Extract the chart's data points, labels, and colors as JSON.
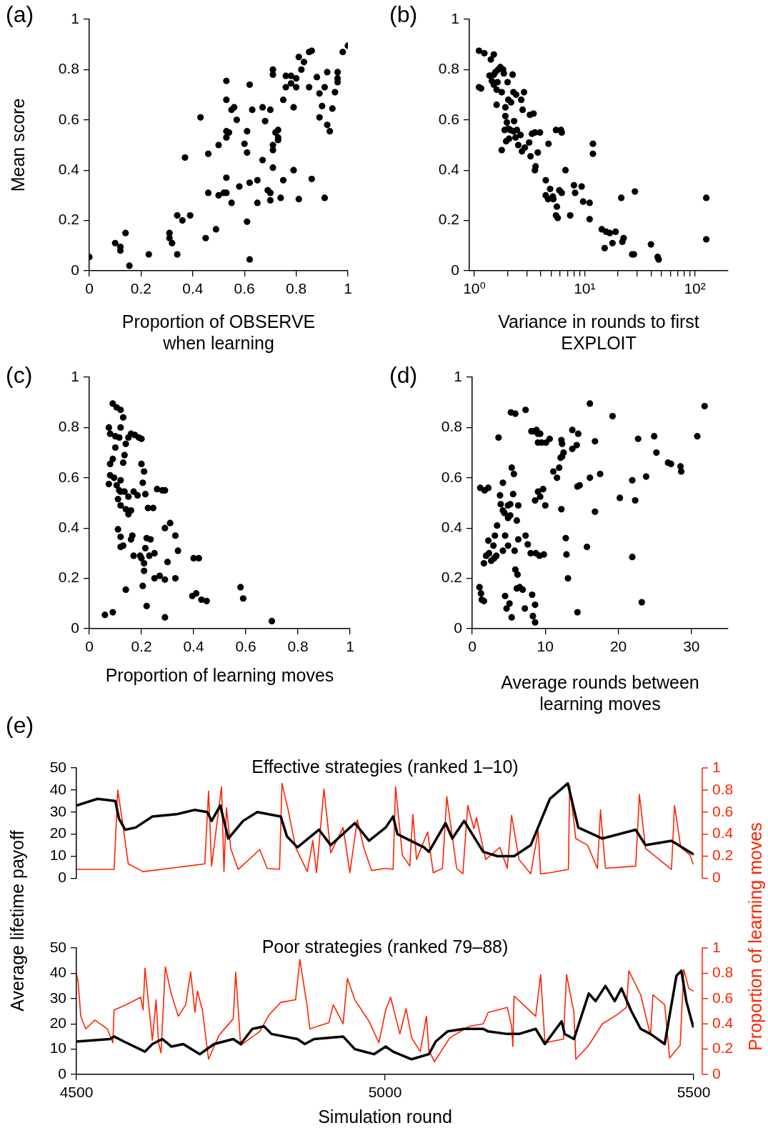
{
  "chart_data": [
    {
      "type": "scatter",
      "annotations": [
        "(a)"
      ],
      "xlabel": "Proportion of OBSERVE when learning",
      "ylabel": "Mean score",
      "color": "#000000",
      "marker": "circle",
      "xlim": [
        0,
        1
      ],
      "xticks": [
        0,
        0.2,
        0.4,
        0.6,
        0.8,
        1
      ],
      "ylim": [
        0,
        1
      ],
      "yticks": [
        0,
        0.2,
        0.4,
        0.6,
        0.8,
        1
      ],
      "x": [
        0,
        0.1,
        0.12,
        0.12,
        0.14,
        0.155,
        0.23,
        0.31,
        0.31,
        0.32,
        0.34,
        0.34,
        0.36,
        0.39,
        0.37,
        0.43,
        0.45,
        0.46,
        0.46,
        0.49,
        0.5,
        0.52,
        0.53,
        0.5,
        0.53,
        0.53,
        0.53,
        0.53,
        0.53,
        0.54,
        0.55,
        0.55,
        0.56,
        0.57,
        0.58,
        0.6,
        0.61,
        0.61,
        0.61,
        0.62,
        0.62,
        0.62,
        0.63,
        0.65,
        0.65,
        0.67,
        0.68,
        0.67,
        0.69,
        0.7,
        0.7,
        0.7,
        0.71,
        0.71,
        0.71,
        0.71,
        0.71,
        0.72,
        0.73,
        0.73,
        0.73,
        0.74,
        0.75,
        0.75,
        0.76,
        0.76,
        0.78,
        0.78,
        0.79,
        0.79,
        0.8,
        0.8,
        0.81,
        0.81,
        0.82,
        0.83,
        0.85,
        0.85,
        0.86,
        0.86,
        0.88,
        0.89,
        0.89,
        0.9,
        0.91,
        0.92,
        0.91,
        0.92,
        0.93,
        0.94,
        0.95,
        0.96,
        0.96,
        0.96,
        0.98,
        1
      ],
      "values": [
        0.055,
        0.11,
        0.095,
        0.08,
        0.15,
        0.02,
        0.065,
        0.15,
        0.13,
        0.11,
        0.065,
        0.22,
        0.2,
        0.22,
        0.45,
        0.61,
        0.13,
        0.31,
        0.465,
        0.165,
        0.3,
        0.31,
        0.31,
        0.5,
        0.37,
        0.755,
        0.68,
        0.555,
        0.53,
        0.55,
        0.27,
        0.64,
        0.65,
        0.6,
        0.335,
        0.505,
        0.555,
        0.47,
        0.195,
        0.74,
        0.045,
        0.35,
        0.64,
        0.27,
        0.36,
        0.65,
        0.595,
        0.44,
        0.32,
        0.64,
        0.31,
        0.28,
        0.8,
        0.78,
        0.48,
        0.41,
        0.5,
        0.55,
        0.53,
        0.52,
        0.56,
        0.29,
        0.68,
        0.36,
        0.73,
        0.775,
        0.745,
        0.775,
        0.65,
        0.4,
        0.765,
        0.73,
        0.285,
        0.85,
        0.8,
        0.83,
        0.73,
        0.87,
        0.875,
        0.365,
        0.77,
        0.705,
        0.61,
        0.655,
        0.73,
        0.79,
        0.29,
        0.58,
        0.555,
        0.645,
        0.71,
        0.75,
        0.79,
        0.765,
        0.87,
        0.895
      ]
    },
    {
      "type": "scatter",
      "annotations": [
        "(b)"
      ],
      "xlabel": "Variance in rounds to first EXPLOIT",
      "color": "#000000",
      "marker": "circle",
      "log": "x",
      "xlim": [
        0.9,
        200
      ],
      "xticks": [
        {
          "value": 1,
          "label": "10⁰"
        },
        {
          "value": 2,
          "label": null
        },
        {
          "value": 3,
          "label": null
        },
        {
          "value": 4,
          "label": null
        },
        {
          "value": 5,
          "label": null
        },
        {
          "value": 6,
          "label": null
        },
        {
          "value": 7,
          "label": null
        },
        {
          "value": 8,
          "label": null
        },
        {
          "value": 9,
          "label": null
        },
        {
          "value": 10,
          "label": "10¹"
        },
        {
          "value": 20,
          "label": null
        },
        {
          "value": 30,
          "label": null
        },
        {
          "value": 40,
          "label": null
        },
        {
          "value": 50,
          "label": null
        },
        {
          "value": 60,
          "label": null
        },
        {
          "value": 70,
          "label": null
        },
        {
          "value": 80,
          "label": null
        },
        {
          "value": 90,
          "label": null
        },
        {
          "value": 100,
          "label": "10²"
        }
      ],
      "ylim": [
        0,
        1
      ],
      "yticks": [
        0,
        0.2,
        0.4,
        0.6,
        0.8,
        1
      ],
      "x": [
        1.1,
        1.1,
        1.15,
        1.23,
        1.41,
        1.5,
        1.37,
        1.44,
        1.5,
        1.55,
        1.62,
        1.64,
        1.72,
        1.82,
        1.85,
        1.5,
        1.59,
        1.59,
        1.77,
        2.0,
        2.22,
        2.26,
        1.91,
        2.03,
        2.15,
        2.39,
        1.91,
        1.97,
        2.12,
        2.29,
        1.88,
        2.03,
        2.26,
        2.43,
        2.66,
        2.74,
        2.82,
        3.19,
        3.44,
        1.77,
        1.94,
        2.06,
        2.36,
        2.62,
        2.5,
        2.7,
        2.87,
        3.14,
        3.33,
        3.23,
        3.59,
        3.54,
        3.54,
        3.93,
        3.76,
        4.7,
        5.5,
        6.1,
        6.2,
        4.44,
        4.86,
        5.15,
        5.9,
        6.2,
        4.44,
        4.66,
        5.2,
        5.6,
        5.5,
        5.7,
        7.4,
        9.4,
        9.7,
        6.7,
        8.0,
        8.2,
        11.1,
        11.9,
        11.9,
        11.1,
        14.3,
        15.7,
        16.9,
        19.1,
        15.2,
        17.9,
        22.6,
        22.0,
        21.5,
        28.6,
        27,
        28,
        40,
        46,
        47,
        127,
        127
      ],
      "values": [
        0.875,
        0.73,
        0.725,
        0.865,
        0.84,
        0.86,
        0.776,
        0.755,
        0.78,
        0.79,
        0.75,
        0.8,
        0.81,
        0.8,
        0.785,
        0.74,
        0.72,
        0.66,
        0.71,
        0.75,
        0.78,
        0.71,
        0.65,
        0.68,
        0.67,
        0.7,
        0.615,
        0.59,
        0.56,
        0.595,
        0.56,
        0.565,
        0.555,
        0.56,
        0.68,
        0.64,
        0.71,
        0.62,
        0.625,
        0.48,
        0.515,
        0.525,
        0.53,
        0.54,
        0.5,
        0.475,
        0.49,
        0.51,
        0.545,
        0.455,
        0.415,
        0.4,
        0.55,
        0.55,
        0.47,
        0.505,
        0.56,
        0.56,
        0.55,
        0.36,
        0.325,
        0.295,
        0.32,
        0.31,
        0.3,
        0.285,
        0.285,
        0.255,
        0.22,
        0.21,
        0.22,
        0.335,
        0.275,
        0.4,
        0.34,
        0.31,
        0.27,
        0.505,
        0.465,
        0.205,
        0.165,
        0.155,
        0.15,
        0.155,
        0.09,
        0.11,
        0.13,
        0.115,
        0.29,
        0.315,
        0.065,
        0.065,
        0.105,
        0.055,
        0.045,
        0.29,
        0.125
      ]
    },
    {
      "type": "scatter",
      "annotations": [
        "(c)"
      ],
      "xlabel": "Proportion of learning moves",
      "color": "#000000",
      "marker": "circle",
      "xlim": [
        0,
        1
      ],
      "xticks": [
        0,
        0.2,
        0.4,
        0.6,
        0.8,
        1
      ],
      "ylim": [
        0,
        1
      ],
      "yticks": [
        0,
        0.2,
        0.4,
        0.6,
        0.8,
        1
      ],
      "x": [
        0.06,
        0.09,
        0.075,
        0.08,
        0.09,
        0.105,
        0.12,
        0.13,
        0.08,
        0.09,
        0.1,
        0.1,
        0.115,
        0.12,
        0.075,
        0.08,
        0.095,
        0.105,
        0.115,
        0.12,
        0.13,
        0.135,
        0.14,
        0.15,
        0.16,
        0.175,
        0.19,
        0.2,
        0.11,
        0.12,
        0.135,
        0.15,
        0.17,
        0.185,
        0.12,
        0.14,
        0.15,
        0.16,
        0.11,
        0.12,
        0.12,
        0.13,
        0.16,
        0.165,
        0.14,
        0.205,
        0.21,
        0.21,
        0.17,
        0.195,
        0.2,
        0.215,
        0.23,
        0.2,
        0.205,
        0.21,
        0.215,
        0.225,
        0.245,
        0.26,
        0.22,
        0.235,
        0.25,
        0.25,
        0.27,
        0.29,
        0.3,
        0.28,
        0.29,
        0.29,
        0.31,
        0.33,
        0.34,
        0.33,
        0.22,
        0.29,
        0.4,
        0.42,
        0.395,
        0.41,
        0.43,
        0.45,
        0.58,
        0.59,
        0.7
      ],
      "values": [
        0.055,
        0.065,
        0.8,
        0.775,
        0.895,
        0.88,
        0.87,
        0.84,
        0.655,
        0.675,
        0.72,
        0.765,
        0.76,
        0.8,
        0.575,
        0.61,
        0.6,
        0.57,
        0.55,
        0.59,
        0.66,
        0.69,
        0.735,
        0.76,
        0.775,
        0.77,
        0.76,
        0.755,
        0.515,
        0.545,
        0.545,
        0.525,
        0.545,
        0.53,
        0.49,
        0.475,
        0.455,
        0.47,
        0.395,
        0.365,
        0.325,
        0.33,
        0.355,
        0.37,
        0.155,
        0.17,
        0.26,
        0.23,
        0.29,
        0.29,
        0.28,
        0.32,
        0.29,
        0.655,
        0.58,
        0.625,
        0.535,
        0.48,
        0.48,
        0.555,
        0.36,
        0.355,
        0.3,
        0.2,
        0.21,
        0.195,
        0.265,
        0.55,
        0.55,
        0.4,
        0.42,
        0.37,
        0.31,
        0.2,
        0.09,
        0.045,
        0.28,
        0.28,
        0.13,
        0.14,
        0.115,
        0.11,
        0.165,
        0.12,
        0.03
      ]
    },
    {
      "type": "scatter",
      "annotations": [
        "(d)"
      ],
      "xlabel": "Average rounds between learning moves",
      "color": "#000000",
      "marker": "circle",
      "xlim": [
        0,
        35
      ],
      "xticks": [
        0,
        10,
        20,
        30
      ],
      "ylim": [
        0,
        1
      ],
      "yticks": [
        0,
        0.2,
        0.4,
        0.6,
        0.8,
        1
      ],
      "x": [
        1.0,
        1.2,
        1.3,
        1.6,
        1.1,
        1.7,
        2.2,
        1.6,
        1.9,
        2.3,
        2.6,
        3.0,
        3.3,
        2.2,
        2.9,
        3.1,
        3.4,
        3.6,
        3.8,
        3.9,
        4.2,
        4.2,
        4.4,
        4.9,
        5.2,
        4.9,
        5.2,
        4.5,
        4.2,
        4.9,
        4.5,
        5.1,
        5.4,
        4.7,
        5.3,
        5.9,
        7.3,
        5.4,
        5.7,
        5.6,
        5.8,
        5.9,
        6.2,
        6.5,
        6.1,
        6.9,
        7.2,
        6.3,
        6.1,
        6.3,
        7.3,
        7.6,
        8.0,
        8.1,
        8.5,
        8.8,
        9.0,
        9.3,
        9.0,
        8.2,
        8.6,
        8.3,
        8.6,
        8.7,
        9.2,
        9.8,
        8.6,
        9.0,
        9.3,
        9.7,
        10.0,
        9.5,
        10.1,
        10.6,
        11.1,
        11.6,
        11.9,
        12.2,
        12.3,
        12.5,
        12.3,
        12.1,
        12.9,
        12.8,
        13.1,
        13.7,
        14.5,
        14.3,
        12.2,
        13.7,
        14.4,
        14.7,
        14.4,
        15.7,
        16.1,
        16.1,
        16.8,
        16.8,
        17.5,
        19.2,
        20.2,
        21.9,
        22.3,
        21.9,
        22.7,
        23.2,
        23.8,
        24.9,
        25.2,
        26.8,
        27.2,
        28.5,
        28.6,
        30.8,
        31.8
      ],
      "values": [
        0.165,
        0.14,
        0.115,
        0.11,
        0.56,
        0.55,
        0.56,
        0.26,
        0.29,
        0.3,
        0.27,
        0.28,
        0.29,
        0.35,
        0.33,
        0.37,
        0.41,
        0.76,
        0.53,
        0.495,
        0.58,
        0.47,
        0.46,
        0.49,
        0.495,
        0.44,
        0.45,
        0.37,
        0.31,
        0.33,
        0.13,
        0.1,
        0.045,
        0.08,
        0.86,
        0.855,
        0.87,
        0.64,
        0.615,
        0.535,
        0.31,
        0.235,
        0.215,
        0.165,
        0.16,
        0.155,
        0.08,
        0.49,
        0.43,
        0.355,
        0.37,
        0.335,
        0.3,
        0.785,
        0.785,
        0.79,
        0.775,
        0.775,
        0.74,
        0.135,
        0.095,
        0.05,
        0.025,
        0.3,
        0.29,
        0.295,
        0.51,
        0.545,
        0.525,
        0.555,
        0.49,
        0.74,
        0.74,
        0.755,
        0.625,
        0.6,
        0.64,
        0.75,
        0.735,
        0.7,
        0.685,
        0.68,
        0.295,
        0.36,
        0.2,
        0.79,
        0.775,
        0.73,
        0.475,
        0.715,
        0.565,
        0.57,
        0.065,
        0.325,
        0.895,
        0.6,
        0.745,
        0.465,
        0.615,
        0.845,
        0.52,
        0.59,
        0.51,
        0.285,
        0.755,
        0.105,
        0.605,
        0.765,
        0.7,
        0.66,
        0.655,
        0.645,
        0.625,
        0.765,
        0.885
      ]
    },
    {
      "type": "line",
      "annotations": [
        "(e)"
      ],
      "title": "Effective strategies (ranked 1–10)",
      "ylabel": "Average lifetime payoff",
      "y2label": "Proportion of learning moves",
      "tick_labels": "y",
      "xlim": [
        4500,
        5500
      ],
      "xticks": [
        4500,
        5000,
        5500
      ],
      "ylim": [
        0,
        50
      ],
      "yticks": [
        0,
        10,
        20,
        30,
        40,
        50
      ],
      "y2lim": [
        0,
        1
      ],
      "y2ticks": [
        0,
        0.2,
        0.4,
        0.6,
        0.8,
        1
      ],
      "series": [
        {
          "color": "#000000",
          "x": [
            4500,
            4534,
            4563,
            4569,
            4579,
            4596,
            4623,
            4662,
            4692,
            4712,
            4719,
            4733,
            4746,
            4770,
            4793,
            4831,
            4841,
            4858,
            4893,
            4912,
            4951,
            4974,
            5001,
            5013,
            5020,
            5063,
            5071,
            5098,
            5109,
            5128,
            5159,
            5182,
            5209,
            5236,
            5267,
            5296,
            5313,
            5352,
            5406,
            5422,
            5464,
            5499
          ],
          "values": [
            33,
            36,
            35,
            27,
            22,
            23,
            28,
            29,
            31,
            30,
            26,
            33,
            18,
            26,
            30,
            28,
            19,
            14,
            22,
            15,
            25,
            17,
            23,
            28,
            20,
            14,
            12,
            25,
            18,
            26,
            12,
            10,
            10,
            15,
            36,
            43,
            23,
            18,
            22,
            15,
            17,
            11
          ]
        },
        {
          "color": "#ff2200",
          "axis": "y2",
          "x": [
            4500,
            4561,
            4567,
            4573,
            4584,
            4608,
            4665,
            4708,
            4714,
            4719,
            4735,
            4739,
            4743,
            4750,
            4762,
            4797,
            4809,
            4829,
            4833,
            4843,
            4855,
            4874,
            4883,
            4889,
            4901,
            4912,
            4932,
            4943,
            4955,
            4966,
            4978,
            5001,
            5013,
            5017,
            5028,
            5040,
            5045,
            5051,
            5069,
            5078,
            5093,
            5100,
            5116,
            5126,
            5134,
            5144,
            5148,
            5163,
            5186,
            5198,
            5205,
            5217,
            5236,
            5248,
            5252,
            5267,
            5297,
            5299,
            5309,
            5328,
            5344,
            5349,
            5357,
            5406,
            5412,
            5422,
            5464,
            5469,
            5479,
            5494,
            5499
          ],
          "values": [
            0.08,
            0.08,
            0.8,
            0.57,
            0.13,
            0.06,
            0.1,
            0.13,
            0.79,
            0.11,
            0.83,
            0.06,
            0.64,
            0.27,
            0.08,
            0.26,
            0.09,
            0.08,
            0.86,
            0.62,
            0.28,
            0.06,
            0.34,
            0.05,
            0.81,
            0.23,
            0.46,
            0.05,
            0.53,
            0.27,
            0.07,
            0.09,
            0.08,
            0.83,
            0.21,
            0.11,
            0.58,
            0.17,
            0.42,
            0.05,
            0.09,
            0.74,
            0.09,
            0.04,
            0.66,
            0.45,
            0.55,
            0.17,
            0.28,
            0.09,
            0.57,
            0.17,
            0.04,
            0.43,
            0.04,
            0.05,
            0.08,
            0.84,
            0.36,
            0.3,
            0.09,
            0.62,
            0.09,
            0.11,
            0.76,
            0.27,
            0.08,
            0.66,
            0.28,
            0.21,
            0.13
          ]
        }
      ]
    },
    {
      "type": "line",
      "title": "Poor strategies (ranked 79–88)",
      "xlabel": "Simulation round",
      "xlim": [
        4500,
        5500
      ],
      "xticks": [
        4500,
        5000,
        5500
      ],
      "ylim": [
        0,
        50
      ],
      "yticks": [
        0,
        10,
        20,
        30,
        40,
        50
      ],
      "y2lim": [
        0,
        1
      ],
      "y2ticks": [
        0,
        0.2,
        0.4,
        0.6,
        0.8,
        1
      ],
      "series": [
        {
          "color": "#000000",
          "x": [
            4500,
            4554,
            4561,
            4577,
            4611,
            4623,
            4639,
            4654,
            4673,
            4700,
            4723,
            4754,
            4766,
            4785,
            4804,
            4816,
            4858,
            4870,
            4885,
            4932,
            4951,
            4982,
            5001,
            5013,
            5043,
            5071,
            5082,
            5101,
            5128,
            5159,
            5167,
            5198,
            5217,
            5244,
            5259,
            5286,
            5291,
            5306,
            5330,
            5341,
            5357,
            5372,
            5383,
            5399,
            5414,
            5430,
            5453,
            5472,
            5480,
            5488,
            5499
          ],
          "values": [
            13,
            14,
            15,
            13,
            9,
            12,
            14,
            11,
            12,
            8,
            12,
            14,
            12,
            18,
            19,
            16,
            14,
            12,
            14,
            15,
            10,
            8,
            11,
            9,
            6,
            8,
            13,
            17,
            18,
            18,
            17,
            16,
            16,
            18,
            12,
            21,
            16,
            14,
            32,
            29,
            35,
            29,
            34,
            25,
            18,
            16,
            12,
            39,
            41,
            29,
            19
          ]
        },
        {
          "color": "#ff2200",
          "axis": "y2",
          "x": [
            4500,
            4503,
            4507,
            4515,
            4530,
            4550,
            4559,
            4561,
            4580,
            4604,
            4608,
            4611,
            4623,
            4629,
            4633,
            4637,
            4644,
            4654,
            4665,
            4677,
            4685,
            4692,
            4696,
            4704,
            4714,
            4731,
            4754,
            4758,
            4766,
            4797,
            4812,
            4831,
            4855,
            4862,
            4874,
            4878,
            4909,
            4916,
            4932,
            4939,
            4951,
            4974,
            4990,
            5001,
            5009,
            5024,
            5034,
            5043,
            5057,
            5067,
            5071,
            5080,
            5105,
            5136,
            5159,
            5167,
            5198,
            5205,
            5207,
            5209,
            5244,
            5252,
            5259,
            5289,
            5294,
            5306,
            5309,
            5330,
            5352,
            5375,
            5391,
            5395,
            5414,
            5430,
            5434,
            5453,
            5461,
            5478,
            5484,
            5492,
            5499
          ],
          "values": [
            0.8,
            0.72,
            0.46,
            0.36,
            0.43,
            0.36,
            0.25,
            0.51,
            0.55,
            0.61,
            0.51,
            0.84,
            0.27,
            0.59,
            0.25,
            0.17,
            0.85,
            0.63,
            0.46,
            0.55,
            0.81,
            0.49,
            0.66,
            0.51,
            0.12,
            0.31,
            0.44,
            0.81,
            0.23,
            0.34,
            0.47,
            0.57,
            0.59,
            0.91,
            0.53,
            0.36,
            0.41,
            0.55,
            0.4,
            0.76,
            0.59,
            0.42,
            0.25,
            0.51,
            0.61,
            0.32,
            0.52,
            0.29,
            0.18,
            0.46,
            0.19,
            0.1,
            0.29,
            0.38,
            0.4,
            0.49,
            0.53,
            0.38,
            0.22,
            0.62,
            0.46,
            0.79,
            0.25,
            0.28,
            0.79,
            0.49,
            0.12,
            0.23,
            0.4,
            0.47,
            0.53,
            0.82,
            0.63,
            0.31,
            0.63,
            0.55,
            0.13,
            0.23,
            0.83,
            0.68,
            0.66
          ]
        }
      ]
    }
  ]
}
